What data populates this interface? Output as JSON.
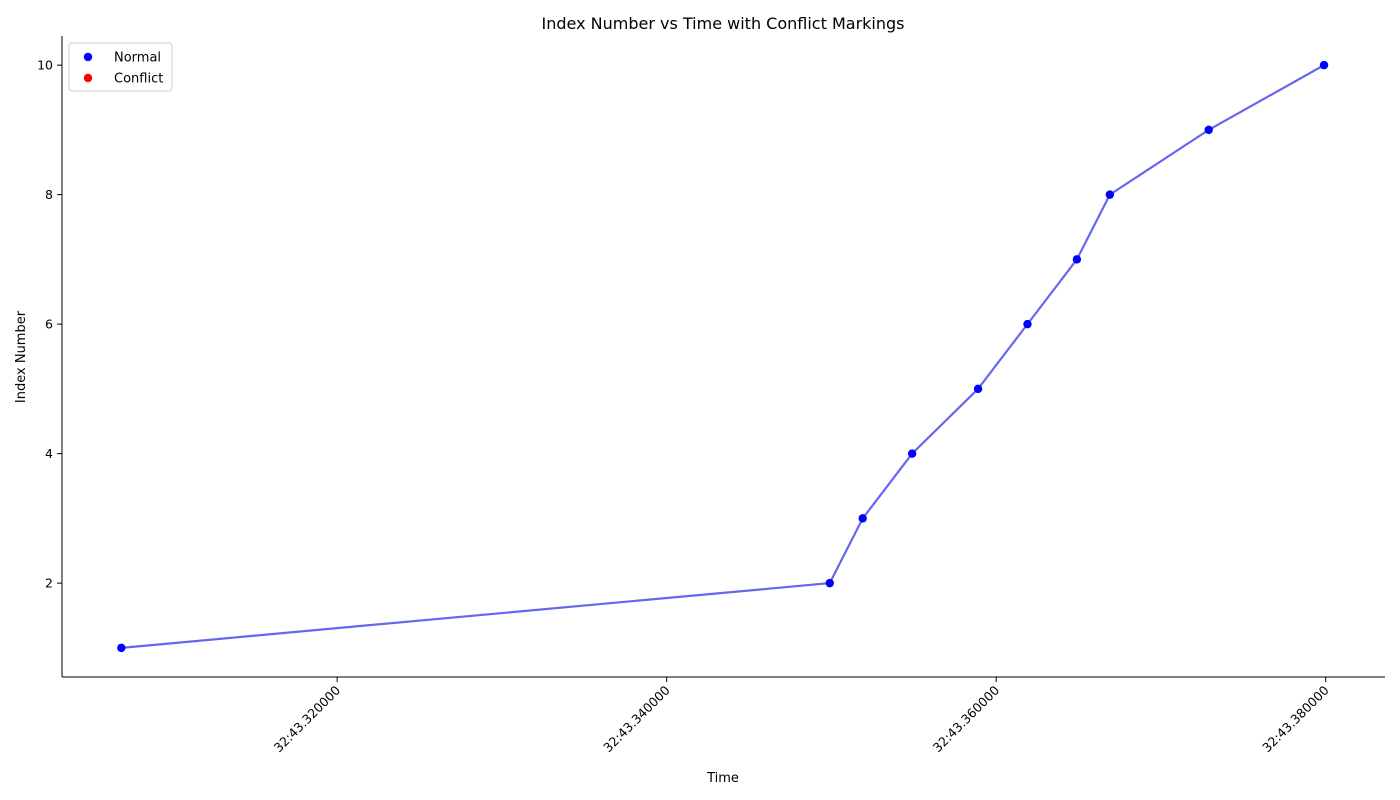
{
  "chart_data": {
    "type": "line",
    "title": "Index Number vs Time with Conflict Markings",
    "xlabel": "Time",
    "ylabel": "Index Number",
    "x_unit": "seconds (MM:SS.ffffff)",
    "xlim": [
      43.3033,
      43.3836
    ],
    "ylim": [
      0.55,
      10.45
    ],
    "x_ticks": [
      43.32,
      43.34,
      43.36,
      43.38
    ],
    "x_tick_labels": [
      "32:43.320000",
      "32:43.340000",
      "32:43.360000",
      "32:43.380000"
    ],
    "y_ticks": [
      2,
      4,
      6,
      8,
      10
    ],
    "y_tick_labels": [
      "2",
      "4",
      "6",
      "8",
      "10"
    ],
    "grid": false,
    "legend_position": "top-left",
    "legend": [
      {
        "label": "Normal",
        "color": "#0000ff"
      },
      {
        "label": "Conflict",
        "color": "#ff0000"
      }
    ],
    "line_color": "#6666ee",
    "series": [
      {
        "name": "Normal",
        "color": "#0000ff",
        "x": [
          43.3069,
          43.3499,
          43.3519,
          43.3549,
          43.3589,
          43.3619,
          43.3649,
          43.3669,
          43.3729,
          43.3799
        ],
        "y": [
          1,
          2,
          3,
          4,
          5,
          6,
          7,
          8,
          9,
          10
        ]
      },
      {
        "name": "Conflict",
        "color": "#ff0000",
        "x": [],
        "y": []
      }
    ]
  }
}
